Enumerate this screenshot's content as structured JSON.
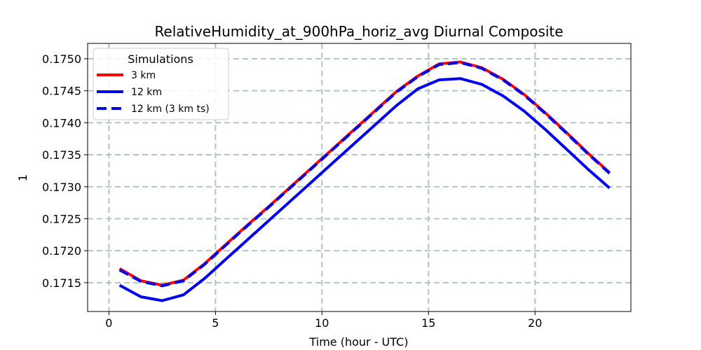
{
  "chart_data": {
    "type": "line",
    "title": "RelativeHumidity_at_900hPa_horiz_avg Diurnal Composite",
    "xlabel": "Time (hour - UTC)",
    "ylabel": "1",
    "xlim": [
      -1,
      24.5
    ],
    "ylim": [
      0.17105,
      0.17524
    ],
    "xticks": [
      0,
      5,
      10,
      15,
      20
    ],
    "xtick_labels": [
      "0",
      "5",
      "10",
      "15",
      "20"
    ],
    "yticks": [
      0.1715,
      0.172,
      0.1725,
      0.173,
      0.1735,
      0.174,
      0.1745,
      0.175
    ],
    "ytick_labels": [
      "0.1715",
      "0.1720",
      "0.1725",
      "0.1730",
      "0.1735",
      "0.1740",
      "0.1745",
      "0.1750"
    ],
    "grid": true,
    "legend": {
      "title": "Simulations",
      "location": "top-left"
    },
    "x": [
      0.5,
      1.5,
      2.5,
      3.5,
      4.5,
      5.5,
      6.5,
      7.5,
      8.5,
      9.5,
      10.5,
      11.5,
      12.5,
      13.5,
      14.5,
      15.5,
      16.5,
      17.5,
      18.5,
      19.5,
      20.5,
      21.5,
      22.5,
      23.5
    ],
    "series": [
      {
        "name": "3 km",
        "color": "#ff0000",
        "style": "solid",
        "values": [
          0.17172,
          0.17153,
          0.17146,
          0.17154,
          0.1718,
          0.1721,
          0.1724,
          0.17269,
          0.17299,
          0.17329,
          0.17359,
          0.17389,
          0.17419,
          0.17449,
          0.17473,
          0.17492,
          0.17495,
          0.17486,
          0.17468,
          0.17444,
          0.17415,
          0.17384,
          0.17352,
          0.17322
        ]
      },
      {
        "name": "12 km",
        "color": "#0000ee",
        "style": "solid",
        "values": [
          0.17146,
          0.17128,
          0.17122,
          0.17131,
          0.17157,
          0.17187,
          0.17217,
          0.17247,
          0.17277,
          0.17307,
          0.17337,
          0.17367,
          0.17397,
          0.17427,
          0.17453,
          0.17467,
          0.17469,
          0.1746,
          0.17442,
          0.17418,
          0.17389,
          0.17358,
          0.17327,
          0.17298
        ]
      },
      {
        "name": "12 km (3 km ts)",
        "color": "#0000ee",
        "style": "dashed",
        "values": [
          0.1717,
          0.17152,
          0.17145,
          0.17153,
          0.17179,
          0.17209,
          0.17239,
          0.17268,
          0.17298,
          0.17328,
          0.17358,
          0.17388,
          0.17418,
          0.17448,
          0.17472,
          0.17491,
          0.17494,
          0.17485,
          0.17467,
          0.17443,
          0.17414,
          0.17383,
          0.17351,
          0.17321
        ]
      }
    ]
  }
}
